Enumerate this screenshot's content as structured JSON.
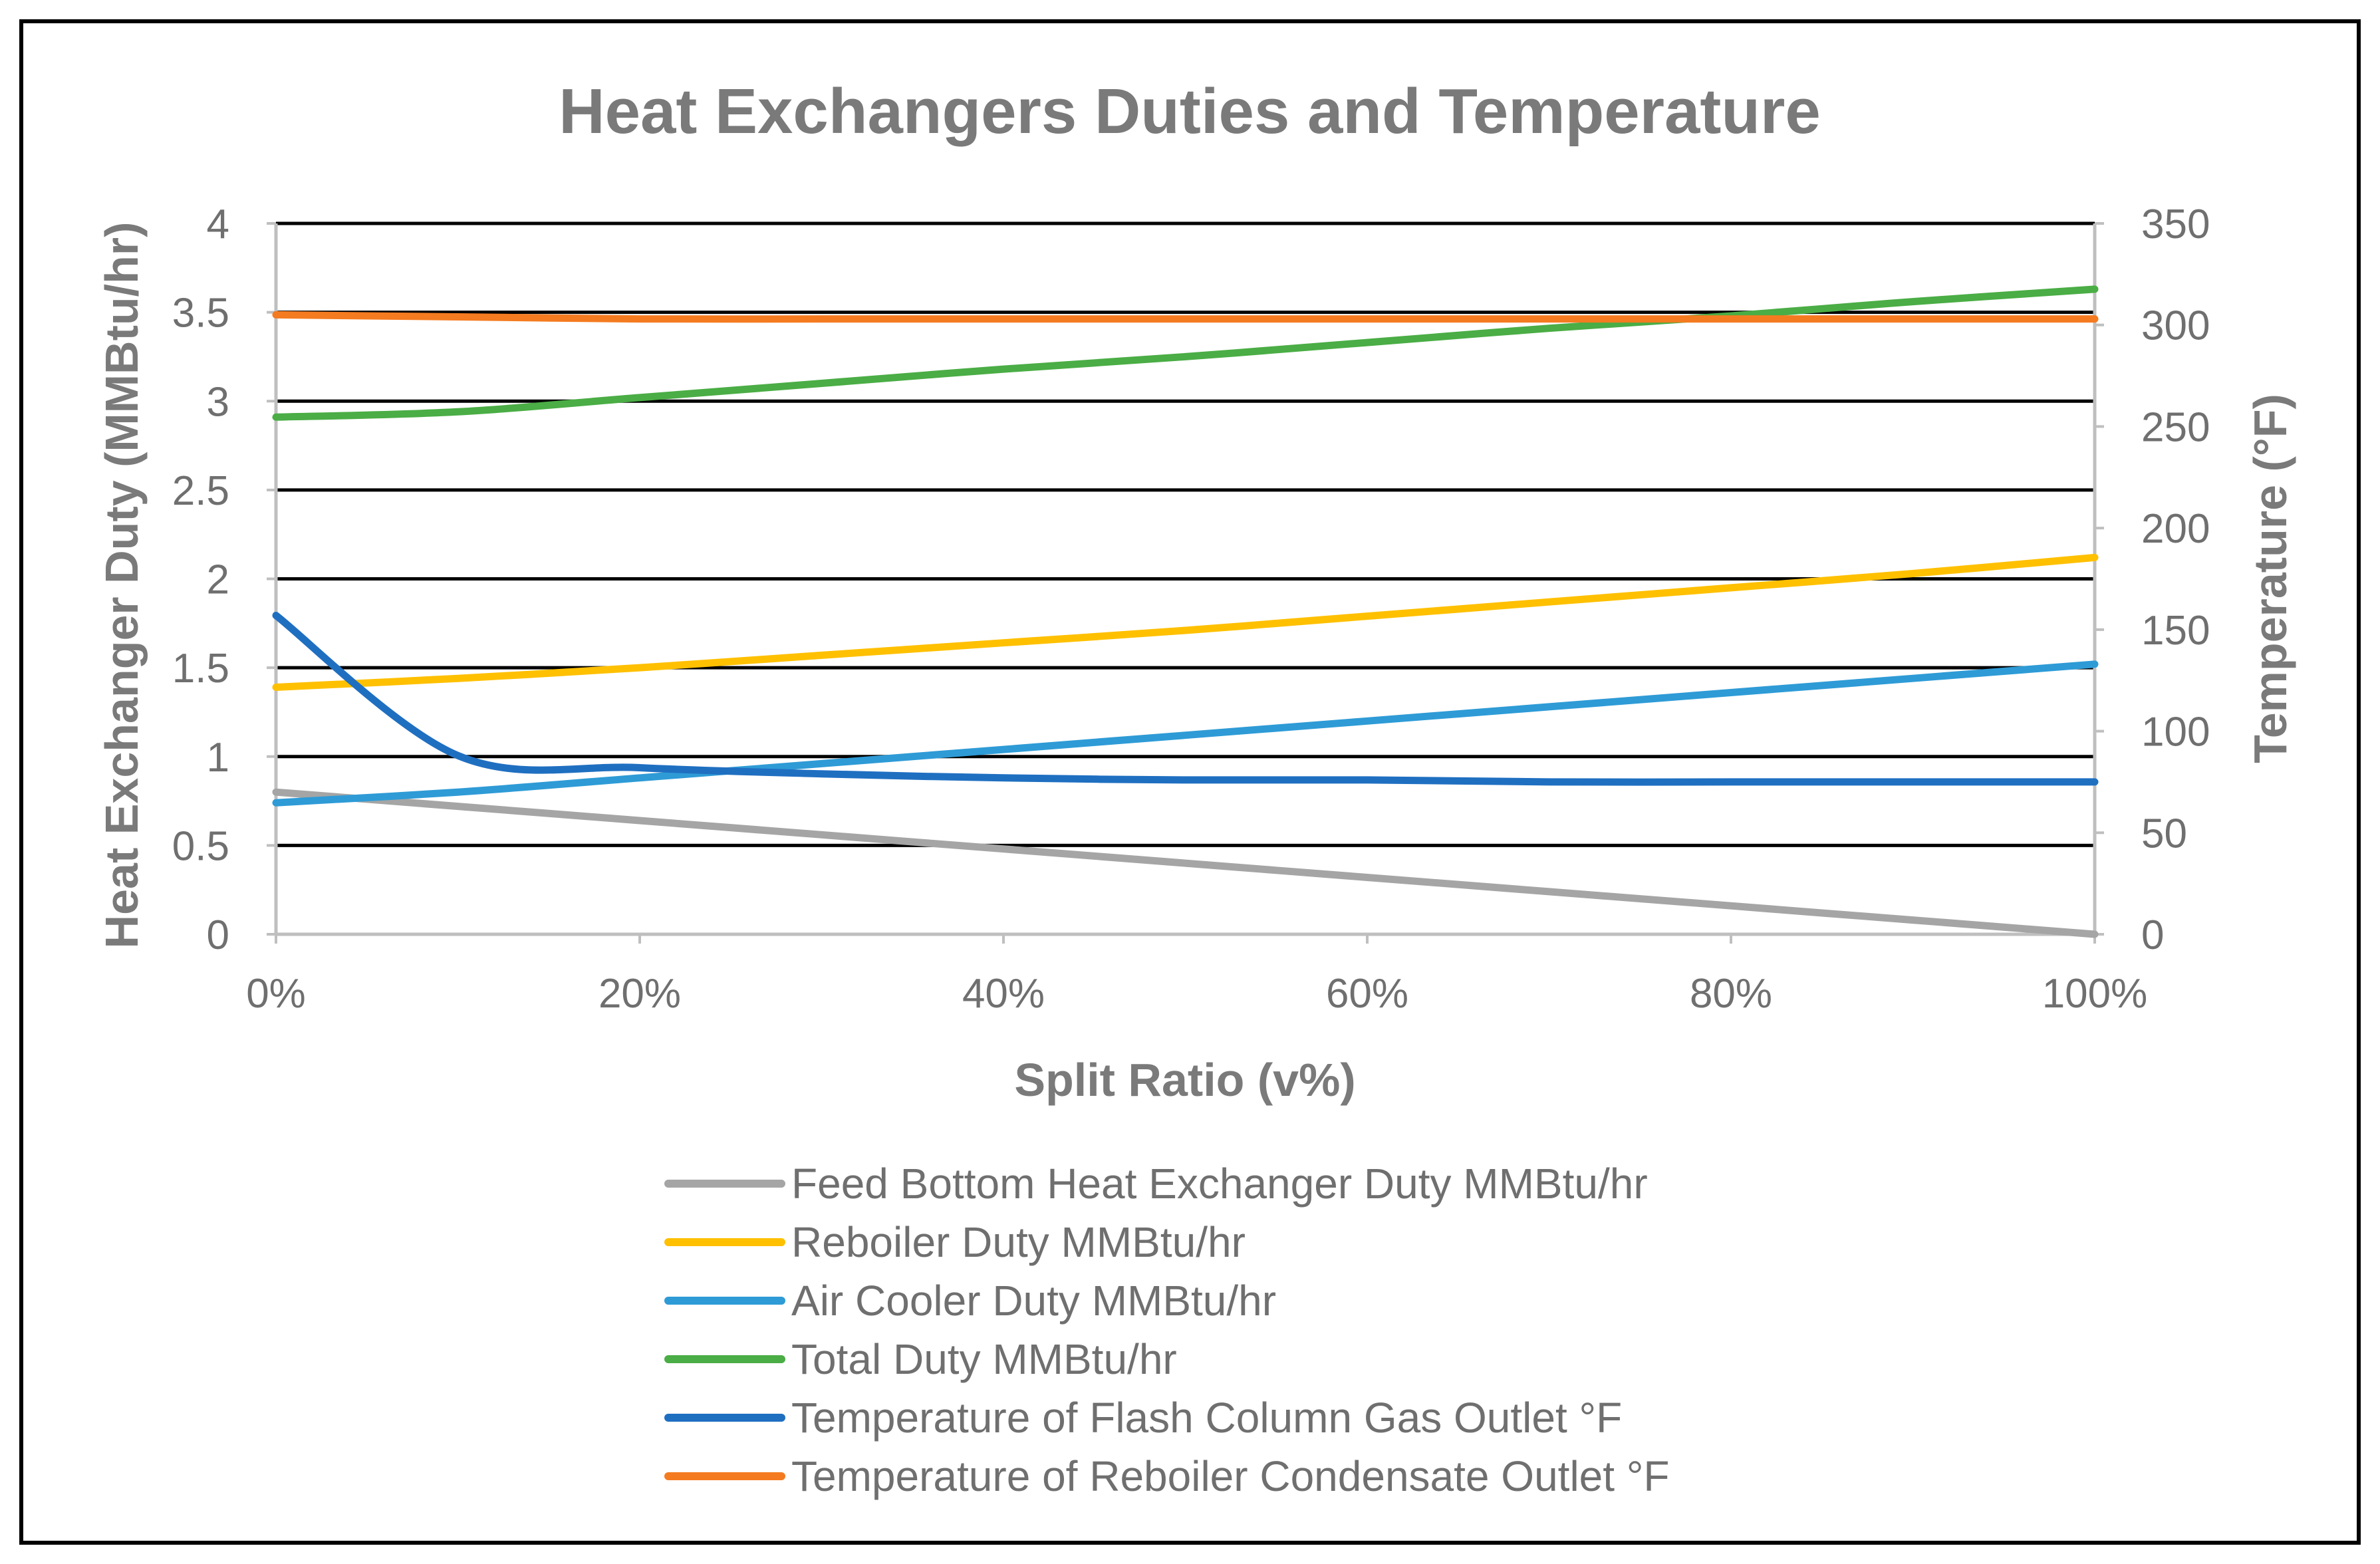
{
  "chart_data": {
    "type": "line",
    "title": "Heat Exchangers Duties and Temperature",
    "xlabel": "Split Ratio (v%)",
    "ylabel": "Heat Exchanger Duty (MMBtu/hr)",
    "y2label": "Temperature (°F)",
    "xlim": [
      0,
      100
    ],
    "ylim": [
      0,
      4
    ],
    "y2lim": [
      0,
      350
    ],
    "x_ticks": [
      "0%",
      "20%",
      "40%",
      "60%",
      "80%",
      "100%"
    ],
    "y_ticks": [
      "0",
      "0.5",
      "1",
      "1.5",
      "2",
      "2.5",
      "3",
      "3.5",
      "4"
    ],
    "y2_ticks": [
      "0",
      "50",
      "100",
      "150",
      "200",
      "250",
      "300",
      "350"
    ],
    "grid": true,
    "legend_position": "bottom",
    "x": [
      0,
      10,
      20,
      30,
      40,
      50,
      60,
      70,
      80,
      90,
      100
    ],
    "series": [
      {
        "name": "Feed Bottom Heat Exchanger Duty MMBtu/hr",
        "axis": "left",
        "color": "#a5a5a5",
        "values": [
          0.8,
          0.72,
          0.64,
          0.56,
          0.48,
          0.4,
          0.32,
          0.24,
          0.16,
          0.08,
          0.0
        ]
      },
      {
        "name": "Reboiler Duty MMBtu/hr",
        "axis": "left",
        "color": "#ffc000",
        "values": [
          1.39,
          1.44,
          1.5,
          1.57,
          1.64,
          1.71,
          1.79,
          1.87,
          1.95,
          2.03,
          2.12
        ]
      },
      {
        "name": "Air Cooler Duty MMBtu/hr",
        "axis": "left",
        "color": "#2e9bd6",
        "values": [
          0.74,
          0.8,
          0.88,
          0.96,
          1.04,
          1.12,
          1.2,
          1.28,
          1.36,
          1.44,
          1.52
        ]
      },
      {
        "name": "Total Duty MMBtu/hr",
        "axis": "left",
        "color": "#4aad45",
        "values": [
          2.91,
          2.94,
          3.02,
          3.1,
          3.18,
          3.25,
          3.33,
          3.41,
          3.48,
          3.56,
          3.63
        ]
      },
      {
        "name": "Temperature of Flash Column Gas Outlet °F",
        "axis": "right",
        "color": "#1f6fc1",
        "values": [
          157,
          88,
          82,
          79,
          77,
          76,
          76,
          75,
          75,
          75,
          75
        ]
      },
      {
        "name": "Temperature of Reboiler Condensate Outlet °F",
        "axis": "right",
        "color": "#f47b20",
        "values": [
          305,
          304,
          303,
          303,
          303,
          303,
          303,
          303,
          303,
          303,
          303
        ]
      }
    ]
  }
}
